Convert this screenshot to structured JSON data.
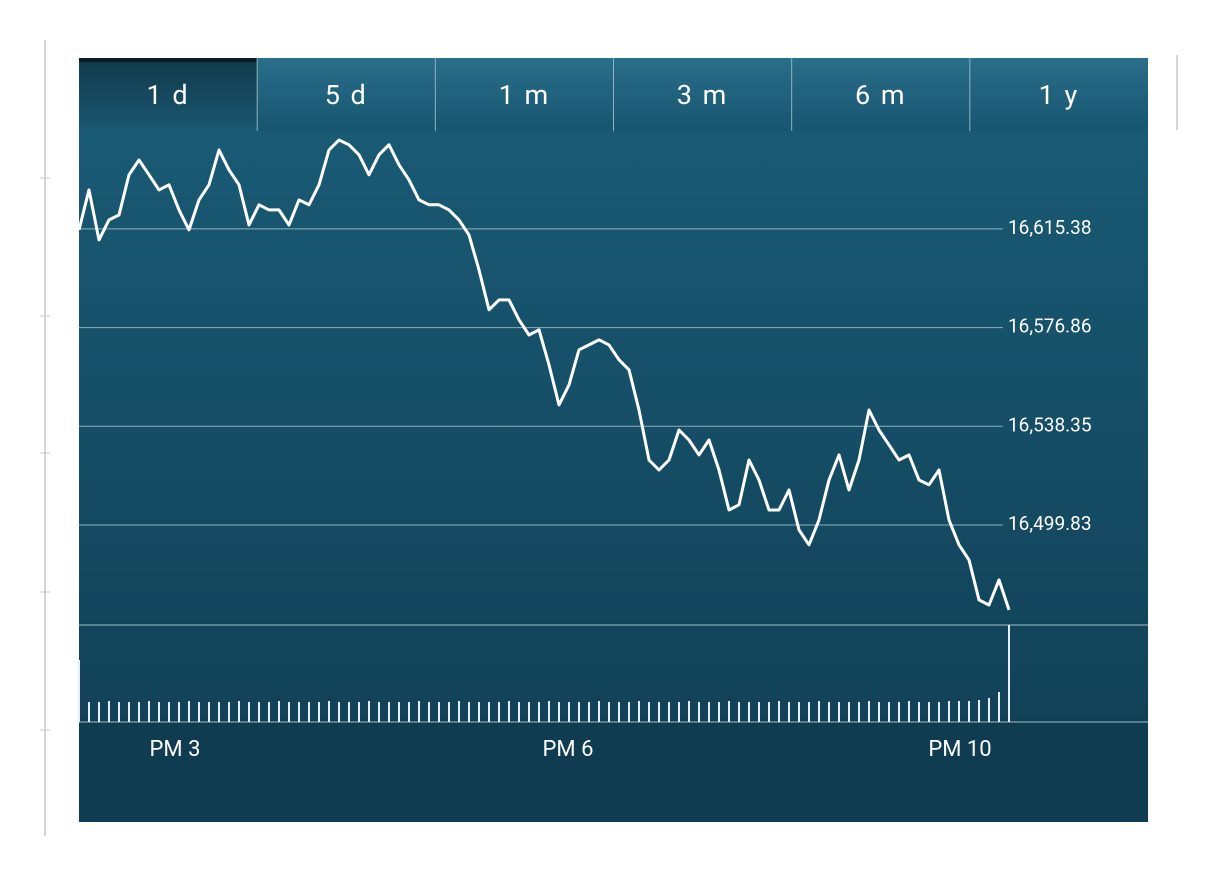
{
  "tabs": [
    "1 d",
    "5 d",
    "1 m",
    "3 m",
    "6 m",
    "1 y"
  ],
  "selected_tab": 0,
  "chart_data": {
    "type": "line",
    "color": "#ffffff",
    "x": [
      0,
      1,
      2,
      3,
      4,
      5,
      6,
      7,
      8,
      9,
      10,
      11,
      12,
      13,
      14,
      15,
      16,
      17,
      18,
      19,
      20,
      21,
      22,
      23,
      24,
      25,
      26,
      27,
      28,
      29,
      30,
      31,
      32,
      33,
      34,
      35,
      36,
      37,
      38,
      39,
      40,
      41,
      42,
      43,
      44,
      45,
      46,
      47,
      48,
      49,
      50,
      51,
      52,
      53,
      54,
      55,
      56,
      57,
      58,
      59,
      60,
      61,
      62,
      63,
      64,
      65,
      66,
      67,
      68,
      69,
      70,
      71,
      72,
      73,
      74,
      75,
      76,
      77,
      78,
      79,
      80,
      81,
      82,
      83,
      84,
      85,
      86,
      87,
      88,
      89,
      90,
      91,
      92,
      93
    ],
    "values": [
      16615.0,
      16630.6,
      16611.1,
      16618.9,
      16620.8,
      16636.5,
      16642.3,
      16636.5,
      16630.6,
      16632.6,
      16622.8,
      16615.0,
      16626.7,
      16632.6,
      16646.2,
      16638.4,
      16632.6,
      16616.9,
      16624.8,
      16622.8,
      16622.8,
      16616.9,
      16626.7,
      16624.8,
      16632.6,
      16646.2,
      16650.1,
      16648.2,
      16644.3,
      16636.5,
      16644.3,
      16648.2,
      16640.4,
      16634.5,
      16626.7,
      16624.8,
      16624.8,
      16622.8,
      16618.9,
      16613.0,
      16599.4,
      16583.8,
      16587.7,
      16587.7,
      16579.9,
      16574.0,
      16576.0,
      16562.3,
      16546.7,
      16554.5,
      16568.2,
      16570.1,
      16572.1,
      16570.1,
      16564.3,
      16560.4,
      16544.7,
      16525.2,
      16521.3,
      16525.2,
      16536.9,
      16533.0,
      16527.2,
      16533.0,
      16521.3,
      16505.7,
      16507.7,
      16525.2,
      16517.4,
      16505.7,
      16505.7,
      16513.5,
      16497.9,
      16492.1,
      16501.8,
      16517.4,
      16527.2,
      16513.5,
      16525.2,
      16544.7,
      16536.9,
      16531.1,
      16525.2,
      16527.2,
      16517.4,
      16515.5,
      16521.3,
      16501.8,
      16492.1,
      16486.2,
      16470.6,
      16468.6,
      16478.4,
      16466.7
    ],
    "volume": [
      62,
      20,
      20,
      21,
      20,
      20,
      20,
      21,
      20,
      20,
      20,
      21,
      20,
      20,
      20,
      20,
      21,
      20,
      20,
      20,
      21,
      20,
      20,
      20,
      20,
      21,
      20,
      20,
      20,
      21,
      20,
      20,
      20,
      20,
      21,
      20,
      20,
      20,
      21,
      20,
      20,
      20,
      20,
      21,
      20,
      20,
      20,
      21,
      20,
      20,
      20,
      20,
      21,
      20,
      20,
      20,
      21,
      20,
      20,
      20,
      20,
      21,
      20,
      20,
      20,
      21,
      20,
      20,
      20,
      20,
      21,
      20,
      20,
      20,
      21,
      20,
      20,
      20,
      20,
      21,
      20,
      20,
      20,
      21,
      20,
      20,
      20,
      21,
      21,
      21,
      22,
      24,
      30,
      97
    ],
    "xlim": [
      0,
      106.9
    ],
    "ylim": [
      16460.8,
      16653.6
    ],
    "yticks": [
      {
        "value": 16499.83,
        "label": "16,499.83"
      },
      {
        "value": 16538.35,
        "label": "16,538.35"
      },
      {
        "value": 16576.86,
        "label": "16,576.86"
      },
      {
        "value": 16615.38,
        "label": "16,615.38"
      }
    ],
    "xticks": [
      {
        "value": 9.6,
        "label": "PM 3"
      },
      {
        "value": 48.9,
        "label": "PM 6"
      },
      {
        "value": 88.1,
        "label": "PM 10"
      }
    ],
    "grid": true
  }
}
